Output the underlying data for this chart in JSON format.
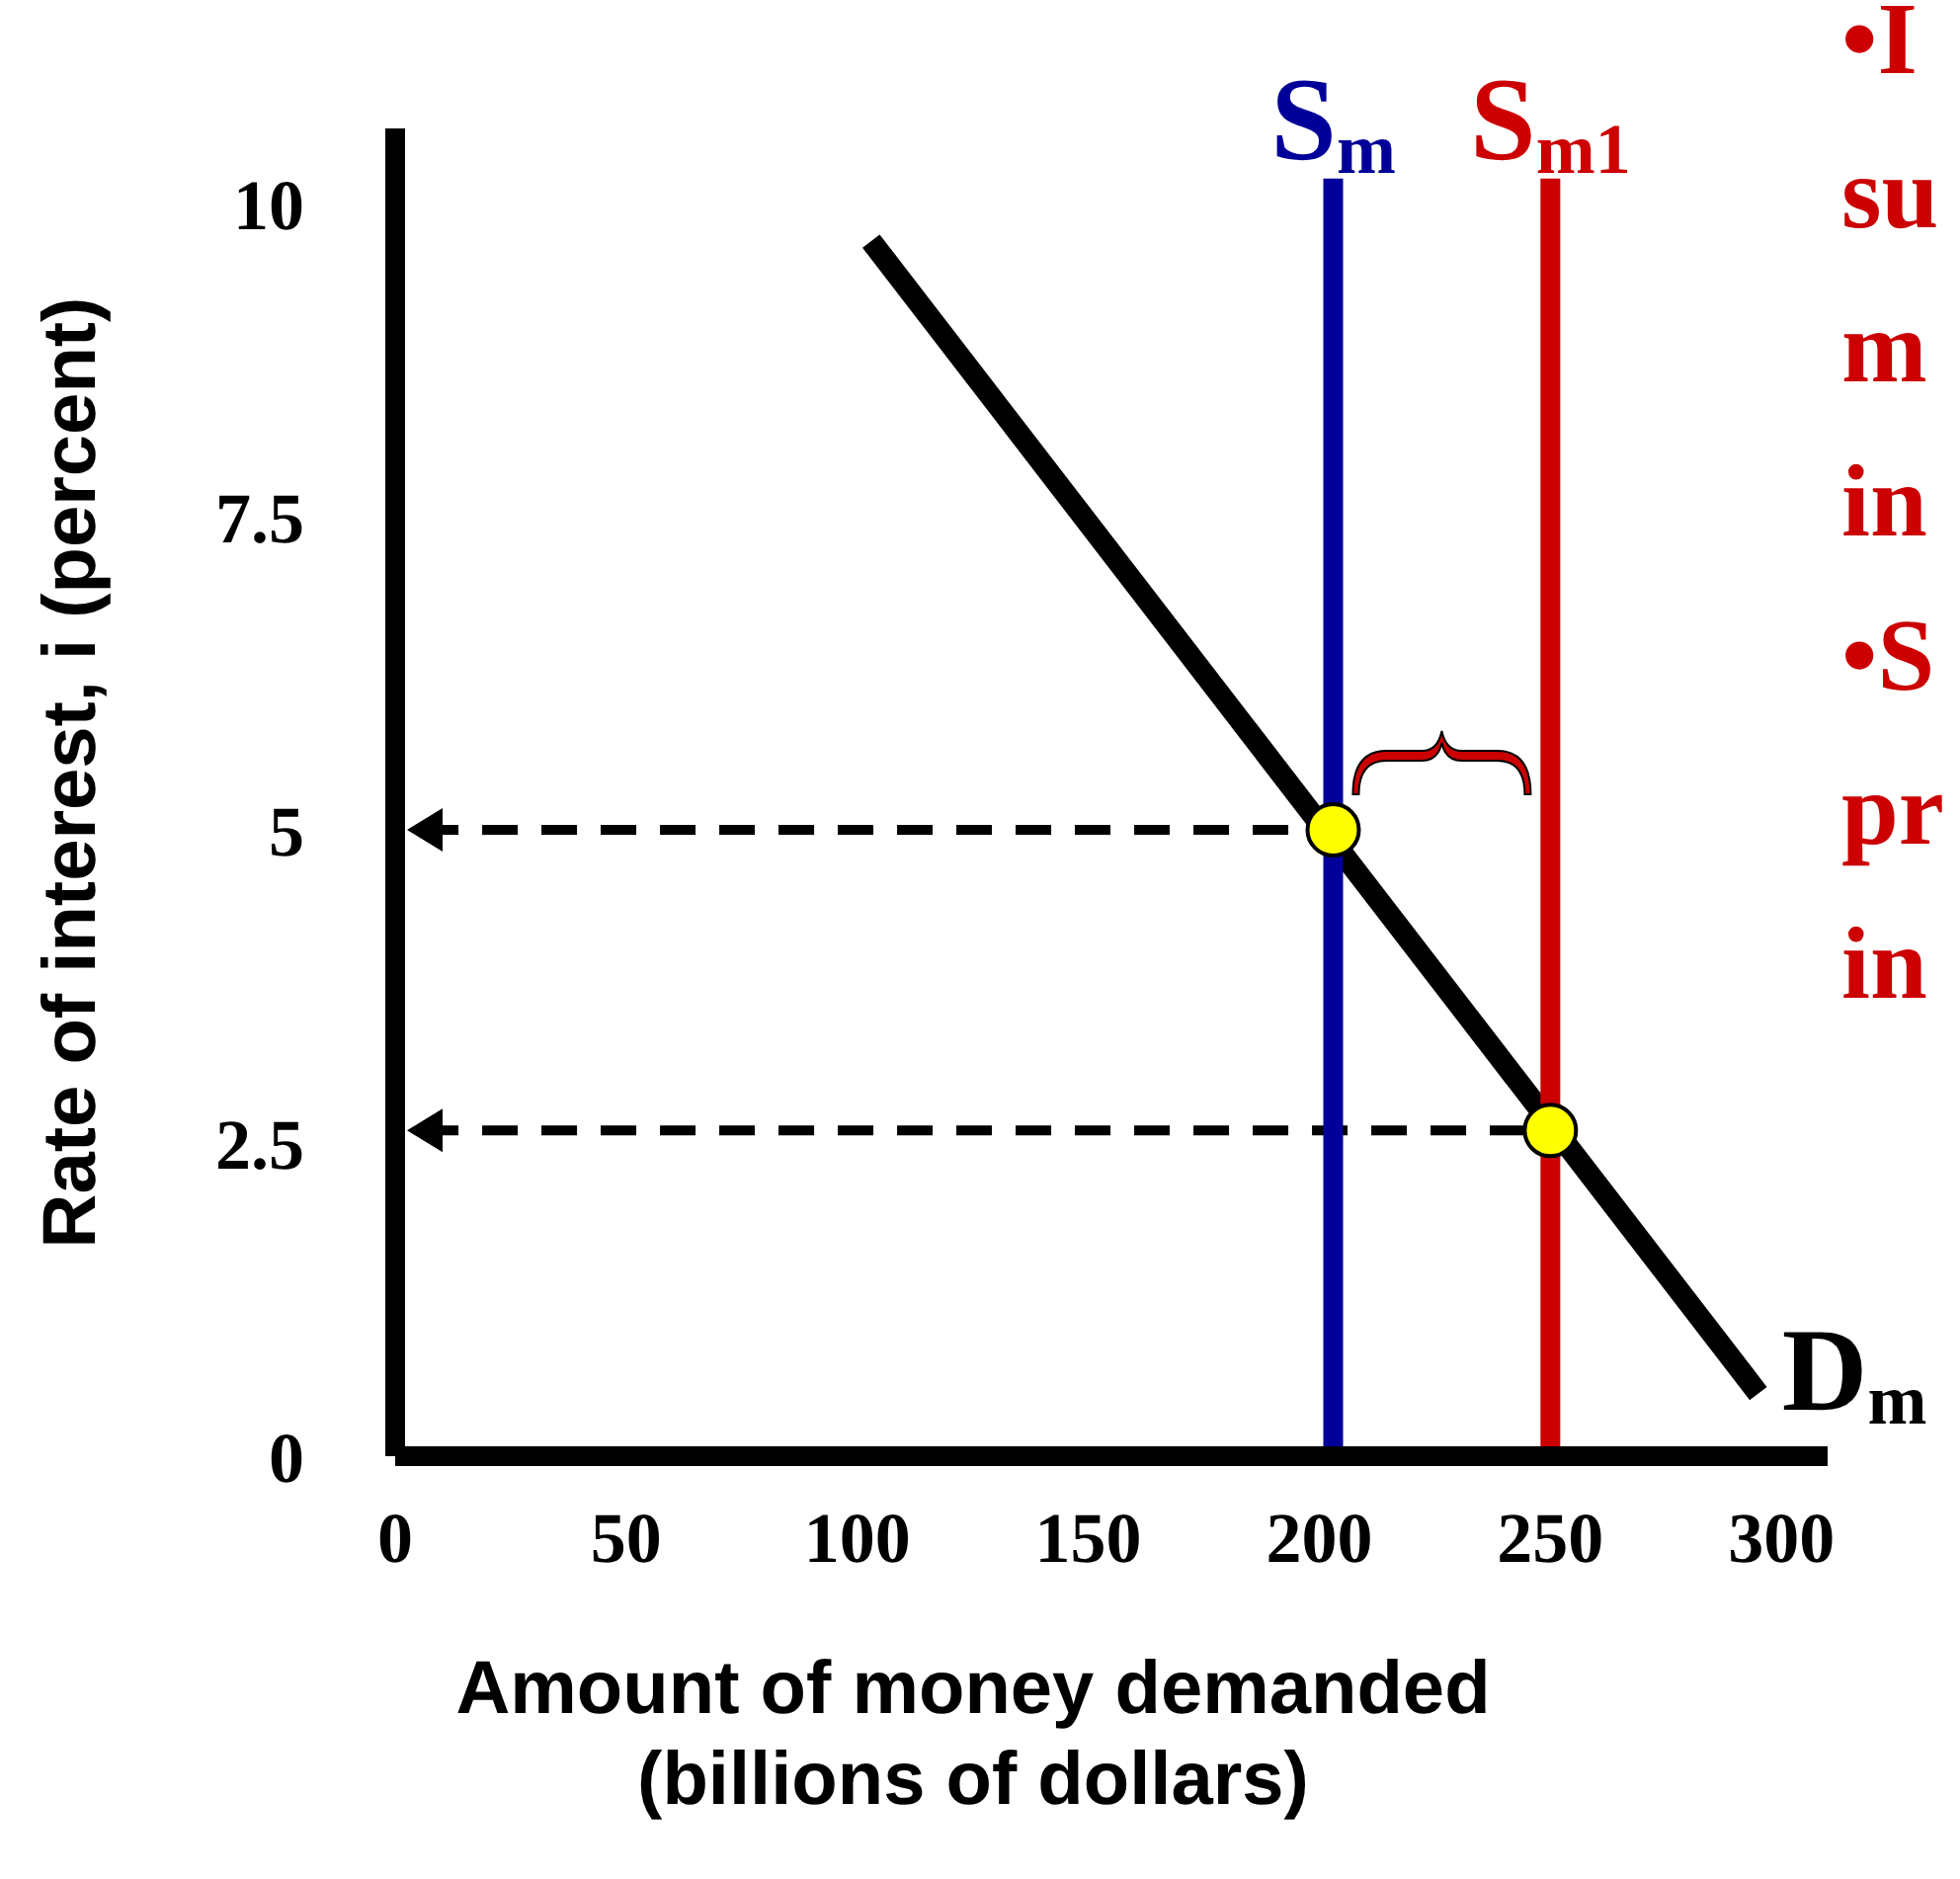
{
  "chart_data": {
    "type": "line",
    "xlabel": "Amount of money demanded\n(billions of dollars)",
    "ylabel": "Rate of interest, i (percent)",
    "xlim": [
      0,
      310
    ],
    "xticks": [
      0,
      50,
      100,
      150,
      200,
      250,
      300
    ],
    "ylim": [
      0,
      10.6
    ],
    "yticks": [
      0,
      2.5,
      5,
      7.5,
      10
    ],
    "series": [
      {
        "name": "D$_{m}$",
        "color": "#000000",
        "marker": "none",
        "x": [
          103,
          295
        ],
        "values": [
          9.7,
          0.5
        ]
      },
      {
        "name": "S$_{m}$",
        "color": "#000099",
        "marker": "none",
        "x": [
          203,
          203
        ],
        "values": [
          0,
          10.2
        ]
      },
      {
        "name": "S$_{m1}$",
        "color": "#cc0000",
        "marker": "none",
        "x": [
          250,
          250
        ],
        "values": [
          0,
          10.2
        ]
      },
      {
        "type": "scatter",
        "color": "#ffff00",
        "marker": "circle",
        "x": [
          203,
          250
        ],
        "values": [
          5,
          2.6
        ]
      }
    ],
    "ref_lines": [
      {
        "axis": "y",
        "value": 5,
        "line_style": "dashed",
        "color": "#000000"
      },
      {
        "axis": "y",
        "value": 2.6,
        "line_style": "dashed",
        "color": "#000000"
      }
    ],
    "annotations": [
      "•I",
      "su",
      "m",
      "in",
      "•S",
      "pr",
      "in"
    ]
  }
}
